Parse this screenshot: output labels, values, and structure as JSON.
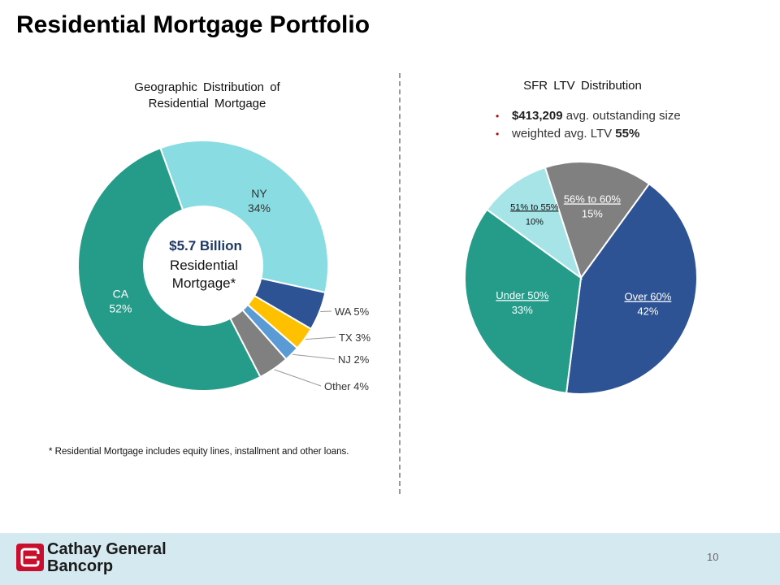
{
  "page": {
    "title": "Residential Mortgage Portfolio",
    "footnote": "* Residential Mortgage includes equity lines, installment and other loans.",
    "page_number": "10",
    "logo": {
      "line1": "Cathay General",
      "line2": "Bancorp"
    }
  },
  "colors": {
    "teal": "#259c89",
    "light_teal": "#89dce2",
    "navy": "#2e5395",
    "gold": "#ffc000",
    "blue": "#5b9bd5",
    "gray": "#808080",
    "pale_teal": "#a6e4e7",
    "brand_red": "#c8102e"
  },
  "left": {
    "title_line1": "Geographic Distribution of",
    "title_line2": "Residential Mortgage",
    "center_line1": "$5.7 Billion",
    "center_line2": "Residential",
    "center_line3": "Mortgage*"
  },
  "right": {
    "title": "SFR LTV Distribution",
    "bullet1_value": "$413,209",
    "bullet1_text": " avg. outstanding size",
    "bullet2_text": "weighted avg. LTV ",
    "bullet2_value": "55%"
  },
  "chart_data": [
    {
      "type": "pie",
      "variant": "donut",
      "title": "Geographic Distribution of Residential Mortgage",
      "center_label": "$5.7 Billion Residential Mortgage*",
      "categories": [
        "NY",
        "WA",
        "TX",
        "NJ",
        "Other",
        "CA"
      ],
      "values": [
        34,
        5,
        3,
        2,
        4,
        52
      ],
      "labels": [
        "NY\n34%",
        "WA 5%",
        "TX 3%",
        "NJ 2%",
        "Other 4%",
        "CA\n52%"
      ],
      "colors": [
        "#89dce2",
        "#2e5395",
        "#ffc000",
        "#5b9bd5",
        "#808080",
        "#259c89"
      ]
    },
    {
      "type": "pie",
      "title": "SFR LTV Distribution",
      "categories": [
        "56% to 60%",
        "Over 60%",
        "Under 50%",
        "51% to 55%"
      ],
      "values": [
        15,
        42,
        33,
        10
      ],
      "labels": [
        "56% to 60%\n15%",
        "Over 60%\n42%",
        "Under 50%\n33%",
        "51% to 55%\n10%"
      ],
      "colors": [
        "#808080",
        "#2e5395",
        "#259c89",
        "#a6e4e7"
      ]
    }
  ]
}
